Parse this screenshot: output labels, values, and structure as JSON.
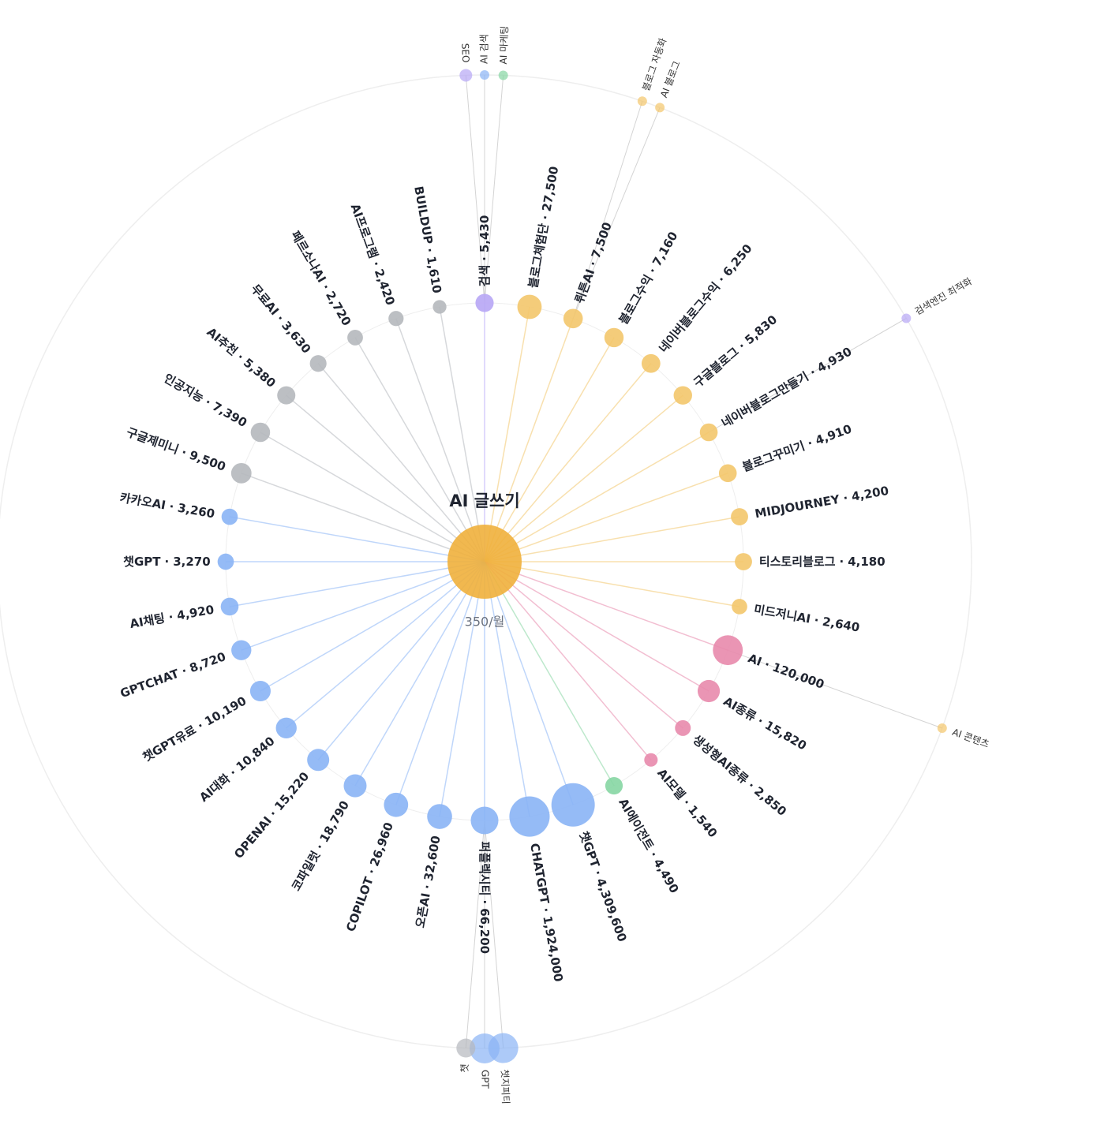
{
  "center": {
    "label": "AI 글쓰기",
    "volume_label": "350/월"
  },
  "separator": "·",
  "nodes": [
    {
      "name": "검색",
      "volume": 5430,
      "volume_label": "5,430",
      "color": "#b7a6f5",
      "related": [
        {
          "label": "SEO",
          "color": "#b7a6f5"
        },
        {
          "label": "AI 검색",
          "color": "#8ab4f5"
        },
        {
          "label": "AI 마케팅",
          "color": "#86d6a3"
        }
      ]
    },
    {
      "name": "블로그체험단",
      "volume": 27500,
      "volume_label": "27,500",
      "color": "#f3c66b"
    },
    {
      "name": "뤼튼AI",
      "volume": 7500,
      "volume_label": "7,500",
      "color": "#f3c66b",
      "related": [
        {
          "label": "블로그 자동화",
          "color": "#f3c66b"
        },
        {
          "label": "AI 블로그",
          "color": "#f3c66b"
        }
      ]
    },
    {
      "name": "블로그수익",
      "volume": 7160,
      "volume_label": "7,160",
      "color": "#f3c66b"
    },
    {
      "name": "네이버블로그수익",
      "volume": 6250,
      "volume_label": "6,250",
      "color": "#f3c66b"
    },
    {
      "name": "구글블로그",
      "volume": 5830,
      "volume_label": "5,830",
      "color": "#f3c66b"
    },
    {
      "name": "네이버블로그만들기",
      "volume": 4930,
      "volume_label": "4,930",
      "color": "#f3c66b",
      "related": [
        {
          "label": "검색엔진 최적화",
          "color": "#b7a6f5"
        }
      ]
    },
    {
      "name": "블로그꾸미기",
      "volume": 4910,
      "volume_label": "4,910",
      "color": "#f3c66b"
    },
    {
      "name": "MIDJOURNEY",
      "volume": 4200,
      "volume_label": "4,200",
      "color": "#f3c66b"
    },
    {
      "name": "티스토리블로그",
      "volume": 4180,
      "volume_label": "4,180",
      "color": "#f3c66b"
    },
    {
      "name": "미드저니AI",
      "volume": 2640,
      "volume_label": "2,640",
      "color": "#f3c66b"
    },
    {
      "name": "AI",
      "volume": 120000,
      "volume_label": "120,000",
      "color": "#e889ac",
      "related": [
        {
          "label": "AI 콘텐츠",
          "color": "#f3c66b"
        }
      ]
    },
    {
      "name": "AI종류",
      "volume": 15820,
      "volume_label": "15,820",
      "color": "#e889ac"
    },
    {
      "name": "생성형AI종류",
      "volume": 2850,
      "volume_label": "2,850",
      "color": "#e889ac"
    },
    {
      "name": "AI모델",
      "volume": 1540,
      "volume_label": "1,540",
      "color": "#e889ac"
    },
    {
      "name": "AI에이전트",
      "volume": 4490,
      "volume_label": "4,490",
      "color": "#86d6a3"
    },
    {
      "name": "챗GPT",
      "volume": 4309600,
      "volume_label": "4,309,600",
      "color": "#8ab4f5"
    },
    {
      "name": "CHATGPT",
      "volume": 1924000,
      "volume_label": "1,924,000",
      "color": "#8ab4f5"
    },
    {
      "name": "퍼플렉시티",
      "volume": 66200,
      "volume_label": "66,200",
      "color": "#8ab4f5",
      "related": [
        {
          "label": "챗지피티",
          "color": "#8ab4f5"
        },
        {
          "label": "GPT",
          "color": "#8ab4f5"
        },
        {
          "label": "챗",
          "color": "#b5b8bd"
        }
      ]
    },
    {
      "name": "오픈AI",
      "volume": 32600,
      "volume_label": "32,600",
      "color": "#8ab4f5"
    },
    {
      "name": "COPILOT",
      "volume": 26960,
      "volume_label": "26,960",
      "color": "#8ab4f5"
    },
    {
      "name": "코파일럿",
      "volume": 18790,
      "volume_label": "18,790",
      "color": "#8ab4f5"
    },
    {
      "name": "OPENAI",
      "volume": 15220,
      "volume_label": "15,220",
      "color": "#8ab4f5"
    },
    {
      "name": "AI대화",
      "volume": 10840,
      "volume_label": "10,840",
      "color": "#8ab4f5"
    },
    {
      "name": "챗GPT유료",
      "volume": 10190,
      "volume_label": "10,190",
      "color": "#8ab4f5"
    },
    {
      "name": "GPTCHAT",
      "volume": 8720,
      "volume_label": "8,720",
      "color": "#8ab4f5"
    },
    {
      "name": "AI채팅",
      "volume": 4920,
      "volume_label": "4,920",
      "color": "#8ab4f5"
    },
    {
      "name": "챗GPT",
      "volume": 3270,
      "volume_label": "3,270",
      "color": "#8ab4f5"
    },
    {
      "name": "카카오AI",
      "volume": 3260,
      "volume_label": "3,260",
      "color": "#8ab4f5"
    },
    {
      "name": "구글제미니",
      "volume": 9500,
      "volume_label": "9,500",
      "color": "#b5b8bd"
    },
    {
      "name": "인공지능",
      "volume": 7390,
      "volume_label": "7,390",
      "color": "#b5b8bd"
    },
    {
      "name": "AI추천",
      "volume": 5380,
      "volume_label": "5,380",
      "color": "#b5b8bd"
    },
    {
      "name": "무료AI",
      "volume": 3630,
      "volume_label": "3,630",
      "color": "#b5b8bd"
    },
    {
      "name": "페르소나AI",
      "volume": 2720,
      "volume_label": "2,720",
      "color": "#b5b8bd"
    },
    {
      "name": "AI프로그램",
      "volume": 2420,
      "volume_label": "2,420",
      "color": "#b5b8bd"
    },
    {
      "name": "BUILDUP",
      "volume": 1610,
      "volume_label": "1,610",
      "color": "#b5b8bd"
    }
  ]
}
